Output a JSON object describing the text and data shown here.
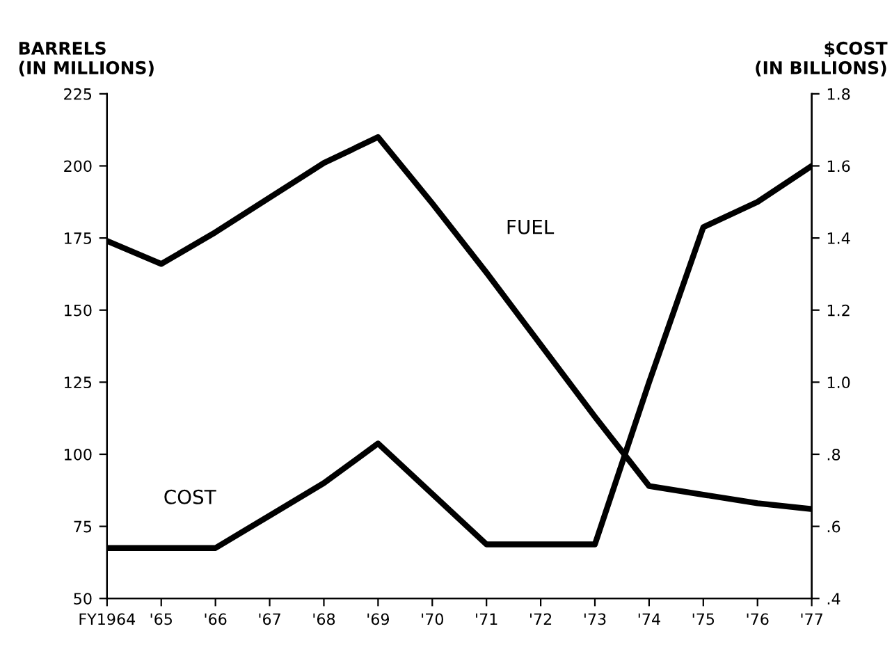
{
  "chart_data": {
    "type": "line",
    "ylabel": "BARRELS\n(IN MILLIONS)",
    "y2label": "$COST\n(IN BILLIONS)",
    "categories": [
      "FY1964",
      "'65",
      "'66",
      "'67",
      "'68",
      "'69",
      "'70",
      "'71",
      "'72",
      "'73",
      "'74",
      "'75",
      "'76",
      "'77"
    ],
    "series": [
      {
        "name": "FUEL",
        "color": "#000000",
        "values": [
          174,
          166,
          177,
          189,
          201,
          210,
          187,
          163,
          138,
          113,
          89,
          86,
          83,
          81
        ]
      },
      {
        "name": "COST",
        "color": "#000000",
        "axis": "y2",
        "values": [
          0.54,
          0.54,
          0.54,
          0.63,
          0.72,
          0.83,
          0.69,
          0.55,
          0.55,
          0.55,
          1.0,
          1.43,
          1.5,
          1.6
        ]
      }
    ],
    "ylim": [
      50,
      225
    ],
    "yticks": [
      50,
      75,
      100,
      125,
      150,
      175,
      200,
      225
    ],
    "y2lim": [
      0.4,
      1.8
    ],
    "y2ticks": [
      {
        "value": 0.4,
        "label": ".4"
      },
      {
        "value": 0.6,
        "label": ".6"
      },
      {
        "value": 0.8,
        "label": ".8"
      },
      {
        "value": 1.0,
        "label": "1.0"
      },
      {
        "value": 1.2,
        "label": "1.2"
      },
      {
        "value": 1.4,
        "label": "1.4"
      },
      {
        "value": 1.6,
        "label": "1.6"
      },
      {
        "value": 1.8,
        "label": "1.8"
      }
    ],
    "grid": false,
    "legend": false,
    "marker": "none",
    "line_style": "solid"
  }
}
